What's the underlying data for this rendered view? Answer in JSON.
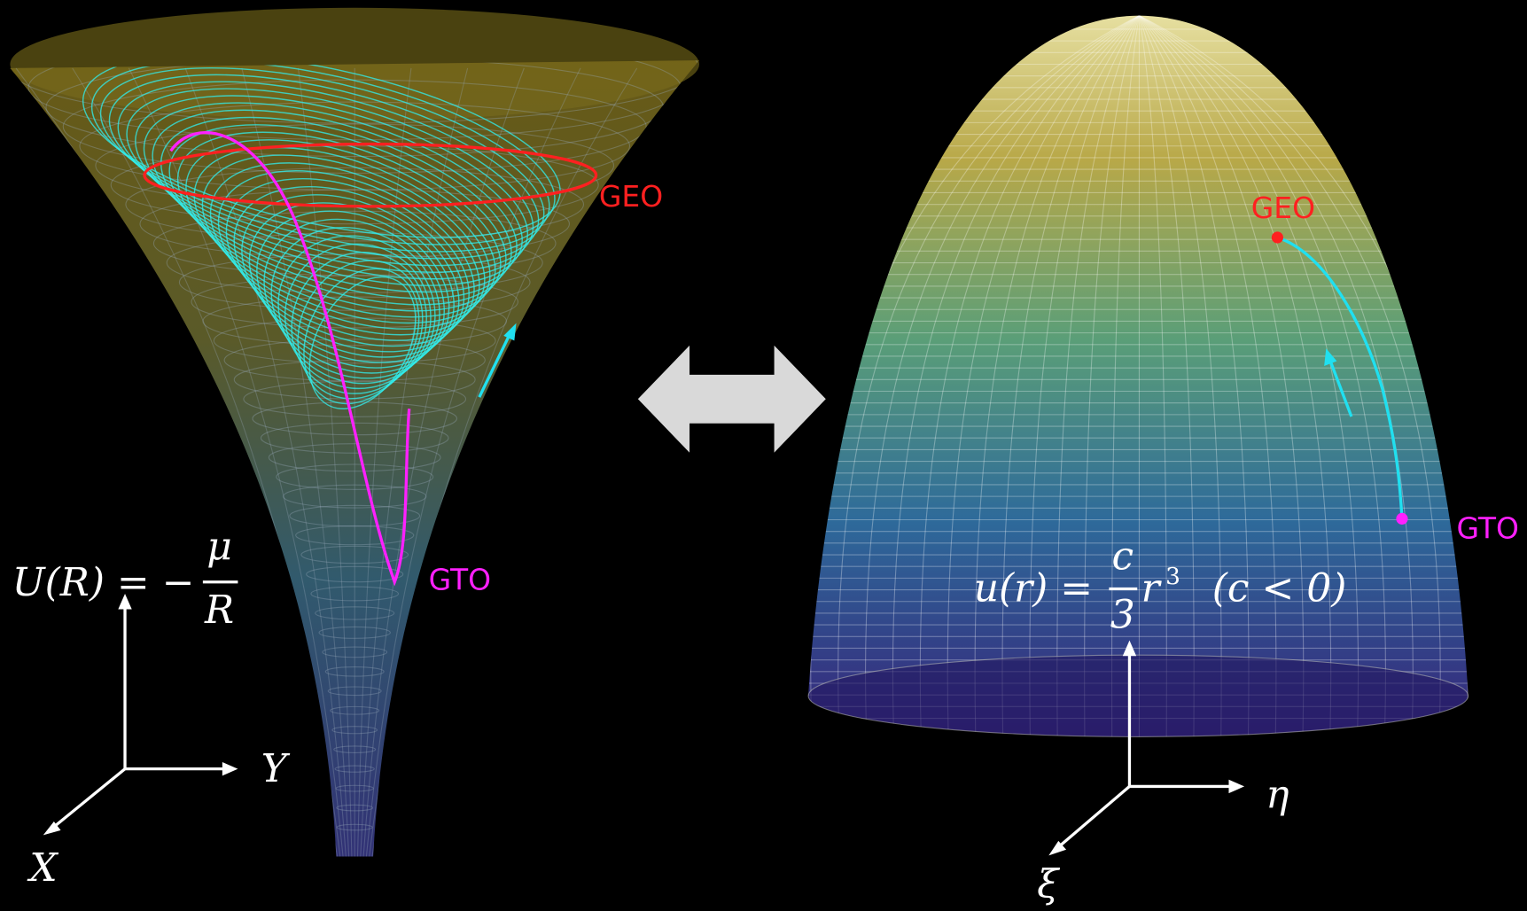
{
  "left": {
    "geo_label": "GEO",
    "gto_label": "GTO",
    "formula": {
      "lhs": "U(R) = −",
      "numerator": "μ",
      "denominator": "R"
    },
    "axes": {
      "horizontal": "Y",
      "diagonal": "X"
    }
  },
  "right": {
    "geo_label": "GEO",
    "gto_label": "GTO",
    "formula": {
      "lhs": "u(r) = ",
      "numerator": "c",
      "denominator": "3",
      "variable": "r",
      "exponent": "3",
      "condition": "(c < 0)"
    },
    "axes": {
      "horizontal": "η",
      "diagonal": "ξ"
    }
  }
}
